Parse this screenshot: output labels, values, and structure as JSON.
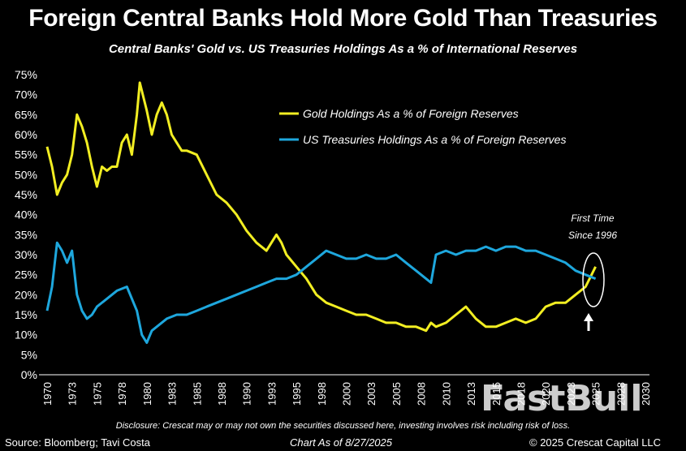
{
  "title": "Foreign Central Banks Hold More Gold Than Treasuries",
  "subtitle": "Central Banks' Gold vs. US Treasuries Holdings As a % of International Reserves",
  "annotation": {
    "line1": "First Time",
    "line2": "Since 1996"
  },
  "disclosure": "Disclosure: Crescat may or may not own the securities discussed here, investing involves risk including risk of loss.",
  "source": "Source: Bloomberg; Tavi Costa",
  "as_of": "Chart As of 8/27/2025",
  "copyright": "© 2025 Crescat Capital LLC",
  "watermark": "FastBull",
  "colors": {
    "gold": "#f2ee22",
    "treasuries": "#1ea7dd",
    "background": "#000000",
    "text": "#ffffff"
  },
  "chart_data": {
    "type": "line",
    "title": "Central Banks' Gold vs. US Treasuries Holdings As a % of International Reserves",
    "xlabel": "",
    "ylabel": "",
    "xlim": [
      1970,
      2030
    ],
    "ylim": [
      0,
      75
    ],
    "y_ticks": [
      "0%",
      "5%",
      "10%",
      "15%",
      "20%",
      "25%",
      "30%",
      "35%",
      "40%",
      "45%",
      "50%",
      "55%",
      "60%",
      "65%",
      "70%",
      "75%"
    ],
    "x_ticks": [
      "1970",
      "1973",
      "1975",
      "1978",
      "1980",
      "1983",
      "1985",
      "1988",
      "1990",
      "1993",
      "1995",
      "1998",
      "2000",
      "2003",
      "2005",
      "2008",
      "2010",
      "2013",
      "2015",
      "2018",
      "2020",
      "2023",
      "2025",
      "2028",
      "2030"
    ],
    "legend_position": "top-right",
    "series": [
      {
        "name": "Gold Holdings As a % of Foreign Reserves",
        "x": [
          1970,
          1970.5,
          1971,
          1971.5,
          1972,
          1972.5,
          1973,
          1973.5,
          1974,
          1974.5,
          1975,
          1975.5,
          1976,
          1976.5,
          1977,
          1977.5,
          1978,
          1978.5,
          1979,
          1979.3,
          1979.6,
          1980,
          1980.5,
          1981,
          1981.5,
          1982,
          1982.5,
          1983,
          1983.5,
          1984,
          1985,
          1986,
          1987,
          1988,
          1989,
          1990,
          1991,
          1992,
          1993,
          1993.5,
          1994,
          1995,
          1996,
          1997,
          1998,
          1999,
          2000,
          2001,
          2002,
          2003,
          2004,
          2005,
          2006,
          2007,
          2008,
          2008.5,
          2009,
          2010,
          2011,
          2012,
          2013,
          2014,
          2015,
          2016,
          2017,
          2018,
          2019,
          2020,
          2021,
          2022,
          2023,
          2024,
          2024.6,
          2025
        ],
        "values": [
          57,
          52,
          45,
          48,
          50,
          55,
          65,
          62,
          58,
          52,
          47,
          52,
          51,
          52,
          52,
          58,
          60,
          55,
          65,
          73,
          70,
          66,
          60,
          65,
          68,
          65,
          60,
          58,
          56,
          56,
          55,
          50,
          45,
          43,
          40,
          36,
          33,
          31,
          35,
          33,
          30,
          27,
          24,
          20,
          18,
          17,
          16,
          15,
          15,
          14,
          13,
          13,
          12,
          12,
          11,
          13,
          12,
          13,
          15,
          17,
          14,
          12,
          12,
          13,
          14,
          13,
          14,
          17,
          18,
          18,
          20,
          22,
          25,
          27
        ]
      },
      {
        "name": "US Treasuries Holdings As a % of Foreign Reserves",
        "x": [
          1970,
          1970.5,
          1971,
          1971.5,
          1972,
          1972.5,
          1973,
          1973.5,
          1974,
          1974.5,
          1975,
          1976,
          1977,
          1978,
          1979,
          1979.5,
          1980,
          1980.5,
          1981,
          1982,
          1983,
          1984,
          1985,
          1986,
          1987,
          1988,
          1989,
          1990,
          1991,
          1992,
          1993,
          1994,
          1995,
          1996,
          1997,
          1998,
          1999,
          2000,
          2001,
          2002,
          2003,
          2004,
          2005,
          2006,
          2007,
          2008,
          2008.5,
          2009,
          2010,
          2011,
          2012,
          2013,
          2014,
          2015,
          2016,
          2017,
          2018,
          2019,
          2020,
          2021,
          2022,
          2023,
          2024,
          2025
        ],
        "values": [
          16,
          22,
          33,
          31,
          28,
          31,
          20,
          16,
          14,
          15,
          17,
          19,
          21,
          22,
          16,
          10,
          8,
          11,
          12,
          14,
          15,
          15,
          16,
          17,
          18,
          19,
          20,
          21,
          22,
          23,
          24,
          24,
          25,
          27,
          29,
          31,
          30,
          29,
          29,
          30,
          29,
          29,
          30,
          28,
          26,
          24,
          23,
          30,
          31,
          30,
          31,
          31,
          32,
          31,
          32,
          32,
          31,
          31,
          30,
          29,
          28,
          26,
          25,
          24
        ]
      }
    ]
  }
}
